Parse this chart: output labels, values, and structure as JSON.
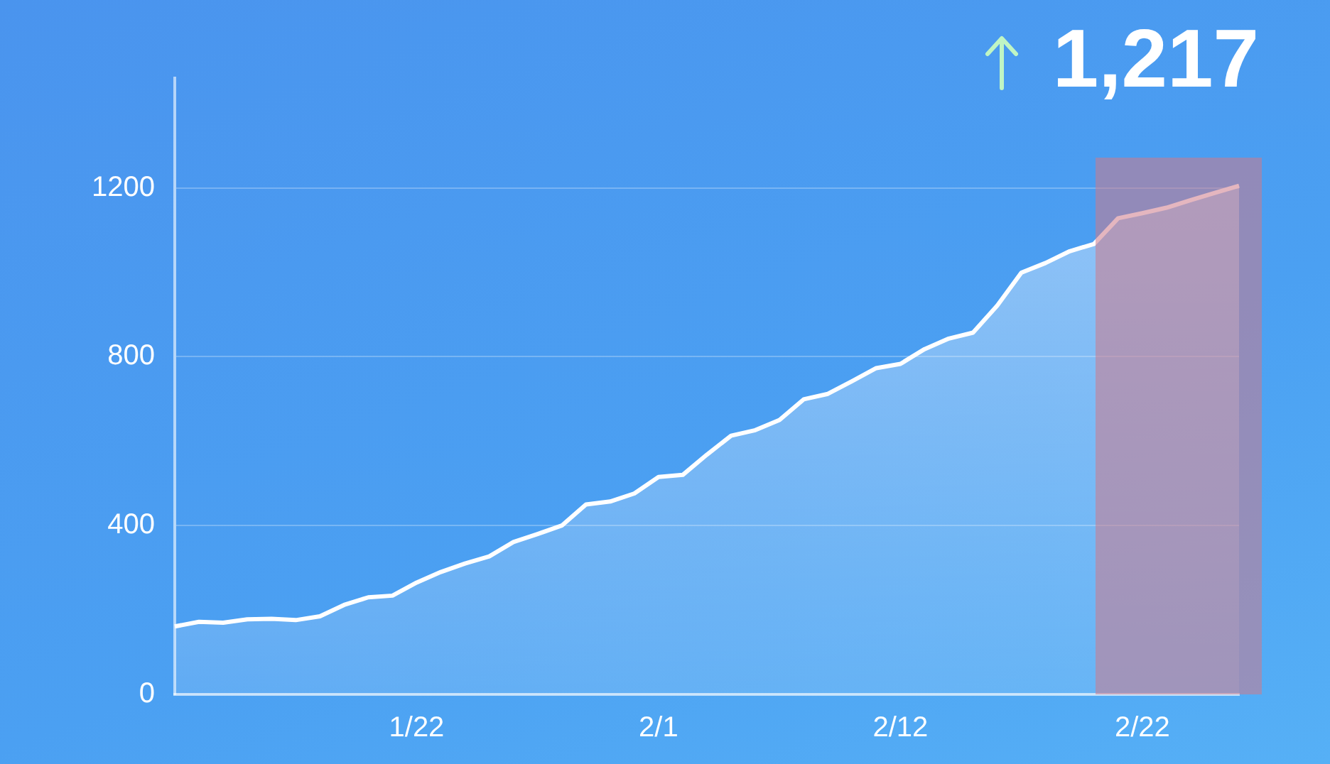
{
  "chart_data": {
    "type": "area",
    "categories": [
      null,
      null,
      null,
      null,
      null,
      null,
      null,
      null,
      null,
      null,
      "1/22",
      null,
      null,
      null,
      null,
      null,
      null,
      null,
      null,
      null,
      "2/1",
      null,
      null,
      null,
      null,
      null,
      null,
      null,
      null,
      null,
      "2/12",
      null,
      null,
      null,
      null,
      null,
      null,
      null,
      null,
      null,
      "2/22",
      null,
      null,
      null,
      null
    ],
    "series": [
      {
        "color": "#ffffff",
        "values": [
          161,
          172,
          170,
          178,
          179,
          176,
          185,
          212,
          230,
          234,
          265,
          290,
          310,
          327,
          361,
          380,
          400,
          450,
          457,
          476,
          515,
          520,
          568,
          613,
          626,
          650,
          699,
          712,
          742,
          773,
          783,
          818,
          843,
          857,
          921,
          999,
          1022,
          1050,
          1067,
          1128,
          1140,
          1153,
          1171,
          1188,
          1205
        ]
      }
    ],
    "ylim": [
      0,
      1460
    ],
    "yticks": [
      0,
      400,
      800,
      1200
    ],
    "grid": "y",
    "legend": false,
    "marker": "none",
    "line_style": "solid",
    "annotations": [
      "1,217"
    ]
  }
}
